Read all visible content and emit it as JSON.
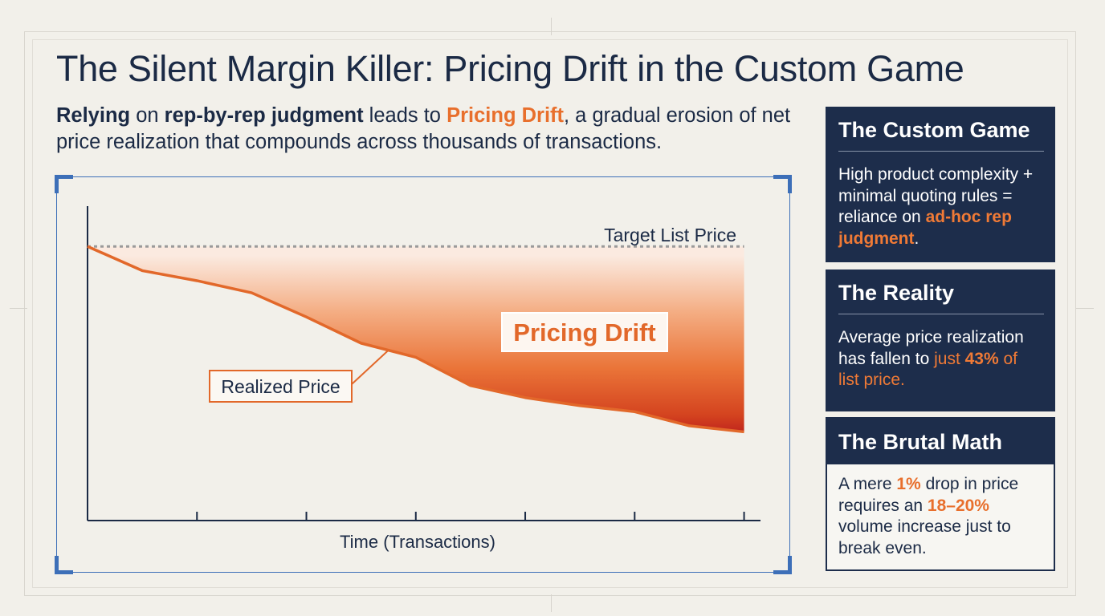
{
  "title": "The Silent Margin Killer: Pricing Drift in the Custom Game",
  "subtitle": {
    "part1": "Relying",
    "part2": " on ",
    "part3": "rep-by-rep judgment",
    "part4": " leads to ",
    "part5": "Pricing Drift",
    "part6": ", a gradual erosion of net price realization that compounds across thousands of transactions."
  },
  "chart_data": {
    "type": "area",
    "title": "",
    "xlabel": "Time (Transactions)",
    "ylabel": "",
    "x": [
      0,
      1,
      2,
      3,
      4,
      5,
      6,
      7,
      8,
      9,
      10,
      11,
      12
    ],
    "series": [
      {
        "name": "Target List Price",
        "values": [
          100,
          100,
          100,
          100,
          100,
          100,
          100,
          100,
          100,
          100,
          100,
          100,
          100
        ],
        "style": "dotted",
        "color": "#9a9a9a"
      },
      {
        "name": "Realized Price",
        "values": [
          100,
          88,
          83,
          77,
          65,
          52,
          45,
          31,
          25,
          21,
          18,
          11,
          8
        ],
        "color": "#e2682a"
      }
    ],
    "xlim": [
      0,
      12.3
    ],
    "ylim": [
      -36,
      120
    ],
    "x_ticks": [
      0,
      2,
      4,
      6,
      8,
      10,
      12
    ],
    "annotations": {
      "target_label": "Target List Price",
      "realized_label": "Realized Price",
      "drift_label": "Pricing Drift"
    },
    "colors": {
      "line": "#e2682a",
      "fill_light": "#fbeae0",
      "fill_dark": "#b3121b",
      "axis": "#1b2a45",
      "frame": "#3d6fb8"
    },
    "grid": false
  },
  "cards": [
    {
      "heading": "The Custom Game",
      "body_1": "High product complexity + minimal quoting rules = reliance on ",
      "body_accent": "ad-hoc rep judgment",
      "body_2": "."
    },
    {
      "heading": "The Reality",
      "body_1": "Average price realization has fallen to ",
      "body_accent_a": "just ",
      "body_accent_b": "43%",
      "body_accent_c": " of list price."
    },
    {
      "heading": "The Brutal Math",
      "body_1": "A mere ",
      "body_accent_1": "1%",
      "body_2": " drop in price requires an ",
      "body_accent_2": "18–20%",
      "body_3": " volume increase just to break even."
    }
  ]
}
